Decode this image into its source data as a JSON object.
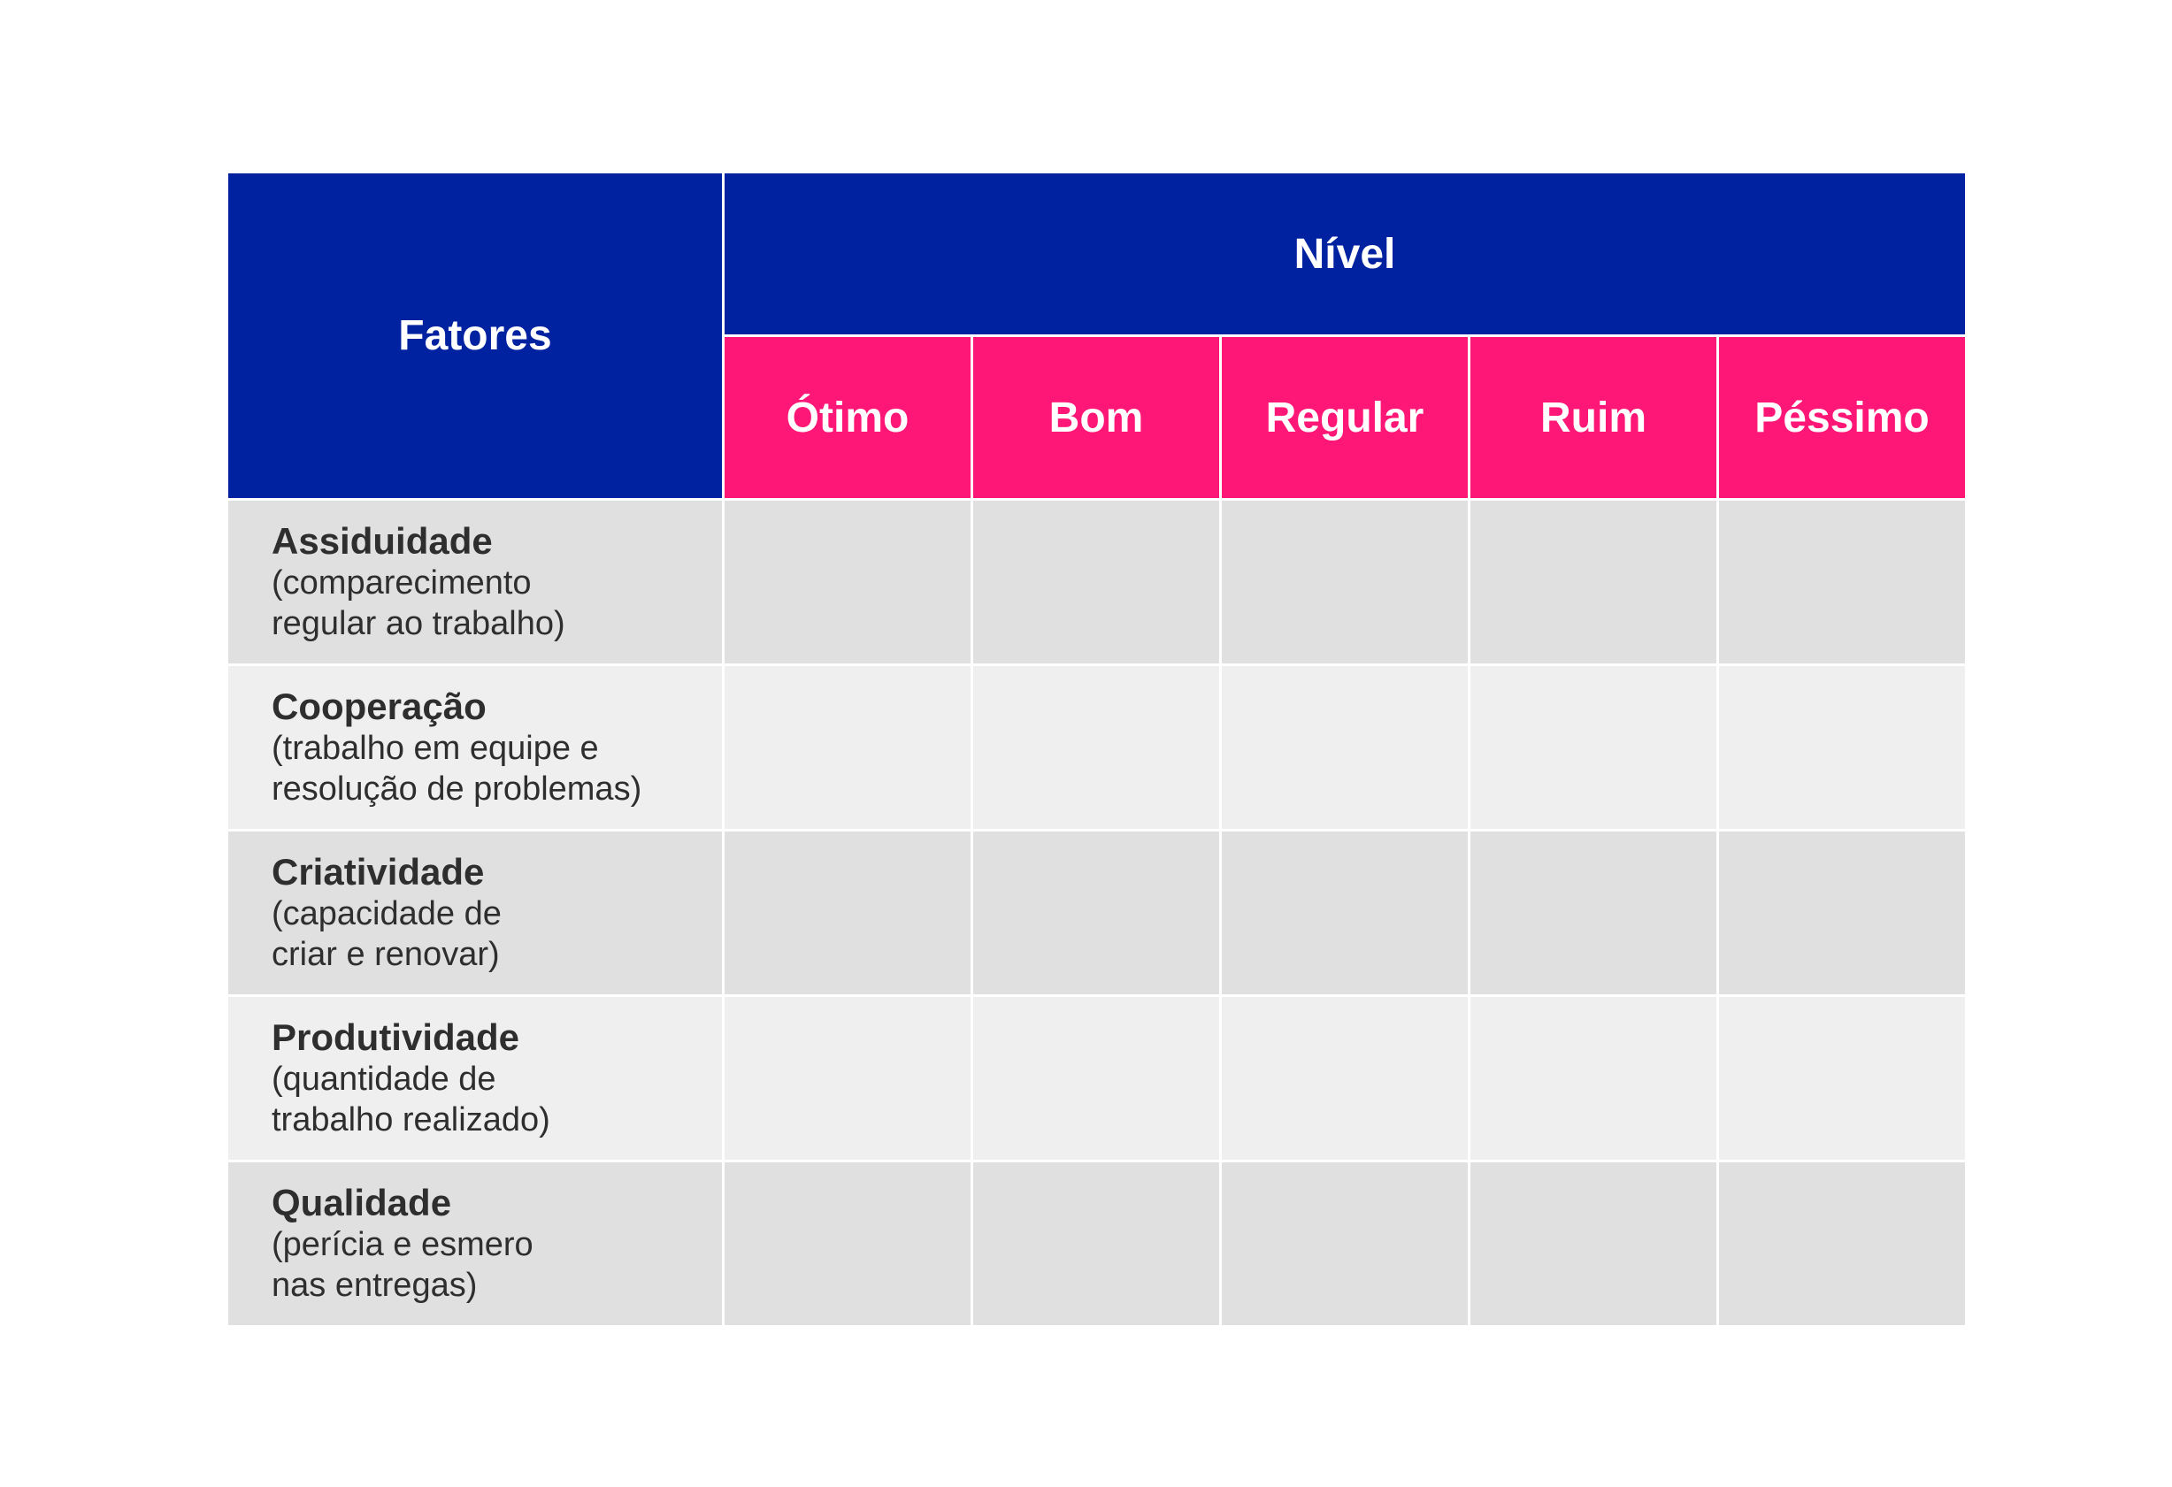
{
  "header": {
    "factors": "Fatores",
    "level": "Nível",
    "levels": [
      "Ótimo",
      "Bom",
      "Regular",
      "Ruim",
      "Péssimo"
    ]
  },
  "rows": [
    {
      "title": "Assiduidade",
      "description": [
        "(comparecimento",
        "regular ao trabalho)"
      ]
    },
    {
      "title": "Cooperação",
      "description": [
        "(trabalho em equipe e",
        "resolução de problemas)"
      ]
    },
    {
      "title": "Criatividade",
      "description": [
        "(capacidade de",
        "criar e renovar)"
      ]
    },
    {
      "title": "Produtividade",
      "description": [
        "(quantidade de",
        "trabalho realizado)"
      ]
    },
    {
      "title": "Qualidade",
      "description": [
        "(perícia e esmero",
        "nas entregas)"
      ]
    }
  ]
}
